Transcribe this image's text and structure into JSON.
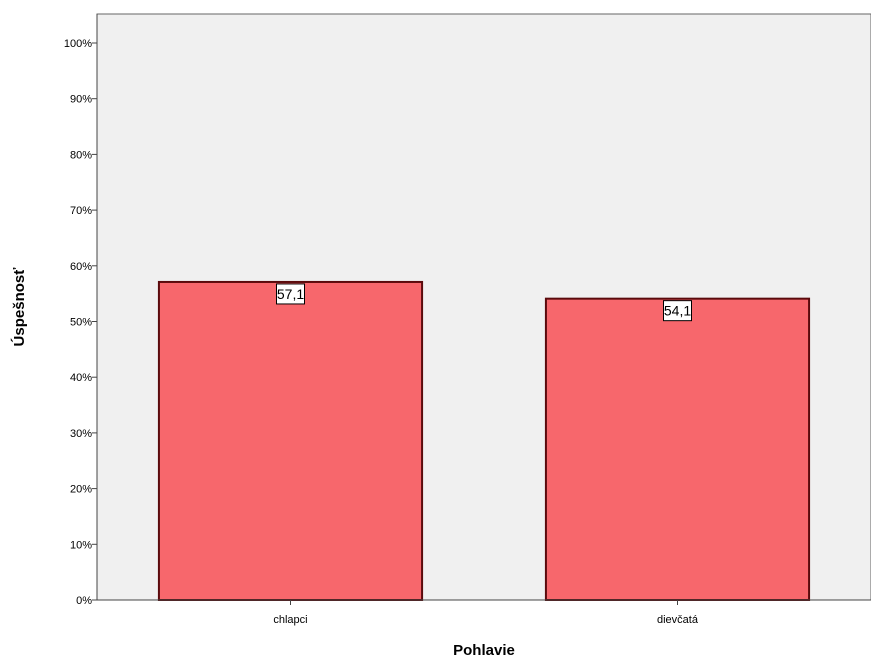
{
  "chart_data": {
    "type": "bar",
    "title": "",
    "xlabel": "Pohlavie",
    "ylabel": "Úspešnosť",
    "categories": [
      "chlapci",
      "dievčatá"
    ],
    "values": [
      57.1,
      54.1
    ],
    "data_labels": [
      "57,1",
      "54,1"
    ],
    "ylim": [
      0,
      100
    ],
    "y_ticks": [
      0,
      10,
      20,
      30,
      40,
      50,
      60,
      70,
      80,
      90,
      100
    ],
    "y_tick_labels": [
      "0%",
      "10%",
      "20%",
      "30%",
      "40%",
      "50%",
      "60%",
      "70%",
      "80%",
      "90%",
      "100%"
    ],
    "grid": false,
    "legend": "none",
    "colors": {
      "bar_fill": "#f7676c",
      "bar_stroke": "#5a0a0c",
      "plot_background": "#f0f0f0",
      "axis": "#444444"
    }
  }
}
